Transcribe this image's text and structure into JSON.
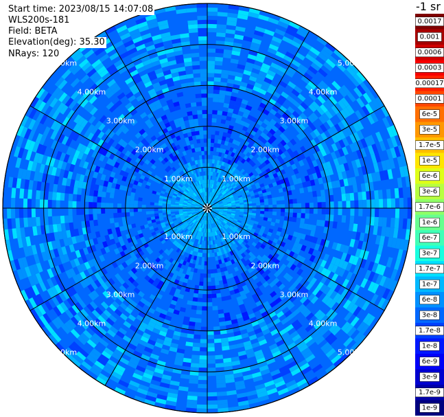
{
  "header": {
    "start_time": "Start time: 2023/08/15 14:07:08",
    "instrument": "WLS200s-181",
    "field": "Field: BETA",
    "elevation": "Elevation(deg): 35.30",
    "nrays": "NRays: 120"
  },
  "colorbar": {
    "unit": "-1 sr",
    "ticks": [
      "0.0017",
      "0.001",
      "0.0006",
      "0.0003",
      "0.00017",
      "0.0001",
      "6e-5",
      "3e-5",
      "1.7e-5",
      "1e-5",
      "6e-6",
      "3e-6",
      "1.7e-6",
      "1e-6",
      "6e-7",
      "3e-7",
      "1.7e-7",
      "1e-7",
      "6e-8",
      "3e-8",
      "1.7e-8",
      "1e-8",
      "6e-9",
      "3e-9",
      "1.7e-9",
      "1e-9"
    ]
  },
  "chart_data": {
    "type": "heatmap",
    "projection": "polar-ppi",
    "field": "BETA",
    "n_rays": 120,
    "ring_labels": [
      "1.00km",
      "2.00km",
      "3.00km",
      "4.00km",
      "5.00km"
    ],
    "ring_ranges_km": [
      1,
      2,
      3,
      4,
      5
    ],
    "max_range_km": 5.0,
    "spoke_angles_deg": [
      0,
      30,
      60,
      90,
      120,
      150,
      180,
      210,
      240,
      270,
      300,
      330
    ],
    "palette": [
      "#00007f",
      "#0000a8",
      "#0000d0",
      "#0000f8",
      "#0018ff",
      "#0040ff",
      "#0068ff",
      "#0090ff",
      "#00b8ff",
      "#00e0ff",
      "#18ffdf",
      "#40ffb7",
      "#68ff8f",
      "#90ff67",
      "#b7ff40",
      "#dfff18",
      "#ffe600",
      "#ffbf00",
      "#ff9700",
      "#ff6f00",
      "#ff4700",
      "#ff1f00",
      "#f70000",
      "#cf0000",
      "#a70000",
      "#7f0000"
    ],
    "dominant_values": [
      "1e-8",
      "6e-8"
    ]
  }
}
